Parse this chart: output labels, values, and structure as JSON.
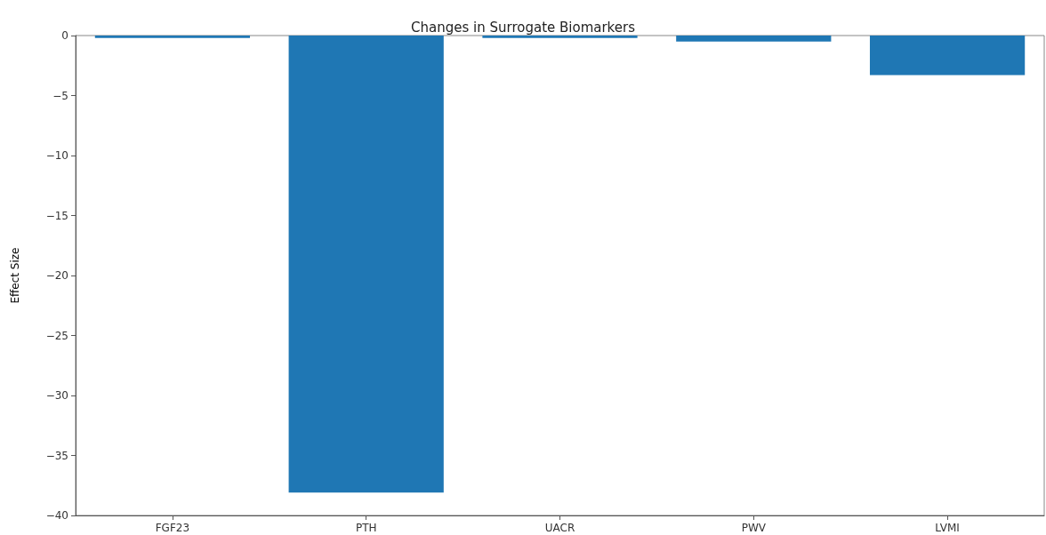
{
  "chart_data": {
    "type": "bar",
    "title": "Changes in Surrogate Biomarkers",
    "ylabel": "Effect Size",
    "categories": [
      "FGF23",
      "PTH",
      "UACR",
      "PWV",
      "LVMI"
    ],
    "values": [
      -0.2,
      -38.1,
      -0.2,
      -0.5,
      -3.3
    ],
    "color": "#1f77b4",
    "ylim": [
      -40,
      0
    ],
    "yticks": [
      {
        "value": -40,
        "label": "−40"
      },
      {
        "value": -35,
        "label": "−35"
      },
      {
        "value": -30,
        "label": "−30"
      },
      {
        "value": -25,
        "label": "−25"
      },
      {
        "value": -20,
        "label": "−20"
      },
      {
        "value": -15,
        "label": "−15"
      },
      {
        "value": -10,
        "label": "−10"
      },
      {
        "value": -5,
        "label": "−5"
      },
      0
    ],
    "grid": false
  }
}
